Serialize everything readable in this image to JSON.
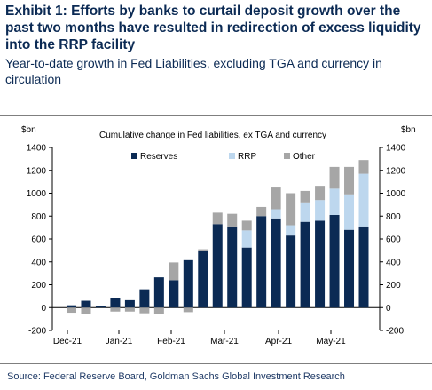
{
  "title": "Exhibit 1: Efforts by banks to curtail deposit growth over the past two months have resulted in redirection of excess liquidity into the RRP facility",
  "subtitle": "Year-to-date growth in Fed Liabilities, excluding TGA and currency in circulation",
  "source": "Source: Federal Reserve Board, Goldman Sachs Global Investment Research",
  "chart_data": {
    "type": "bar",
    "stacked": true,
    "title": "Cumulative change in Fed liabilities, ex TGA and currency",
    "ylabel_left": "$bn",
    "ylabel_right": "$bn",
    "ylim": [
      -200,
      1400
    ],
    "yticks": [
      -200,
      0,
      200,
      400,
      600,
      800,
      1000,
      1200,
      1400
    ],
    "xtick_labels": [
      "Dec-21",
      "Jan-21",
      "Feb-21",
      "Mar-21",
      "Apr-21",
      "May-21"
    ],
    "legend_position": "top",
    "grid": false,
    "colors": {
      "Reserves": "#0b2a54",
      "RRP": "#bdd7ee",
      "Other": "#a6a6a6"
    },
    "series": [
      {
        "name": "Reserves",
        "values": [
          20,
          60,
          15,
          85,
          65,
          160,
          265,
          240,
          415,
          500,
          730,
          710,
          525,
          800,
          780,
          630,
          750,
          760,
          810,
          680,
          710
        ]
      },
      {
        "name": "RRP",
        "values": [
          0,
          0,
          0,
          0,
          0,
          0,
          0,
          0,
          0,
          0,
          0,
          0,
          150,
          0,
          80,
          90,
          170,
          180,
          230,
          310,
          460
        ]
      },
      {
        "name": "Other",
        "values": [
          -45,
          -55,
          0,
          -35,
          -35,
          -50,
          -55,
          155,
          -40,
          10,
          100,
          110,
          85,
          80,
          190,
          280,
          100,
          125,
          190,
          240,
          120
        ]
      }
    ]
  }
}
